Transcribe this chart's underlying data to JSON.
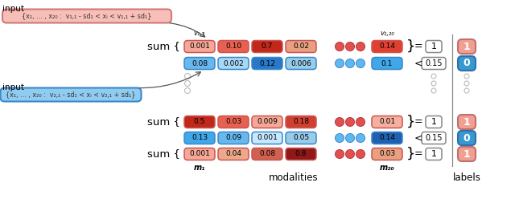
{
  "fig_width": 6.4,
  "fig_height": 2.63,
  "dpi": 100,
  "bg_color": "#ffffff",
  "input_box1_text": "{x₁, … , x₂₀ :  v₁,₁ - sd₁ < xᵢ < v₁,₁ + sd₁}",
  "input_box2_text": "{x₁, … , x₂₀ :  v₂,₁ - sd₁ < xᵢ < v₂,₁ + sd₁}",
  "row1_red_vals": [
    "0.001",
    "0.10",
    "0.7",
    "0.02",
    "0.14"
  ],
  "row1_red_colors": [
    "#f5a898",
    "#e86050",
    "#c0281a",
    "#e8a080",
    "#e04030"
  ],
  "row2_blue_vals": [
    "0.08",
    "0.002",
    "0.12",
    "0.006",
    "0.1"
  ],
  "row2_blue_colors": [
    "#68b8f0",
    "#a8d8f8",
    "#2878c8",
    "#98cce8",
    "#40a8e8"
  ],
  "row3_red_vals": [
    "0.5",
    "0.03",
    "0.009",
    "0.18",
    "0.01"
  ],
  "row3_red_colors": [
    "#c0281a",
    "#e86050",
    "#f5a898",
    "#d04030",
    "#f5b0a0"
  ],
  "row4_blue_vals": [
    "0.13",
    "0.09",
    "0.001",
    "0.05",
    "0.14"
  ],
  "row4_blue_colors": [
    "#40a8e8",
    "#68b8f0",
    "#c8e8ff",
    "#98cce8",
    "#2060b0"
  ],
  "row5_red_vals": [
    "0.001",
    "0.04",
    "0.08",
    "0.8",
    "0.03"
  ],
  "row5_red_colors": [
    "#f5a898",
    "#eca888",
    "#d06050",
    "#901818",
    "#e8a080"
  ],
  "label1_color": "#f0a090",
  "label2_color": "#3898d0",
  "label3_color": "#f0a090",
  "label4_color": "#3898d0",
  "label5_color": "#f0a090",
  "v11_label": "v₁,₁",
  "v120_label": "v₁,₂₀",
  "m1_label": "m₁",
  "m20_label": "m₂₀",
  "modalities_label": "modalities",
  "labels_label": "labels"
}
